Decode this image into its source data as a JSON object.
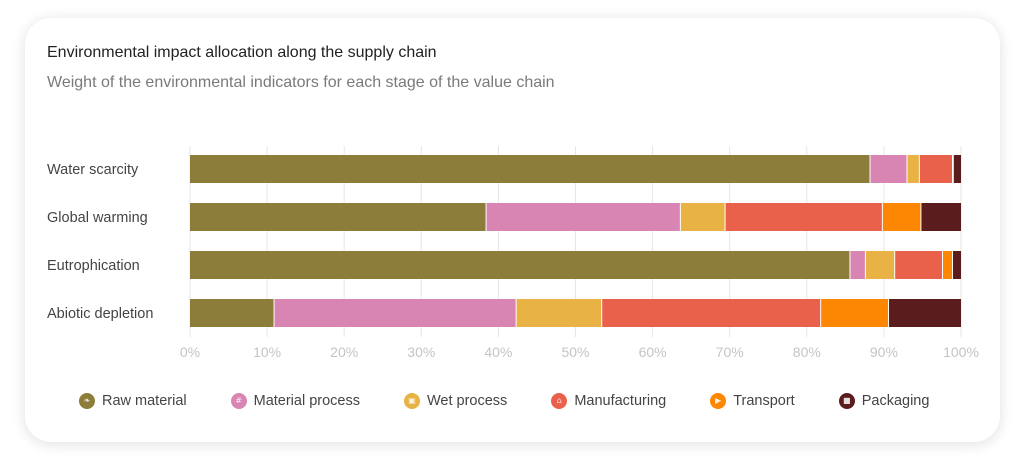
{
  "card": {
    "title": "Environmental impact allocation along the supply chain",
    "subtitle": "Weight of the environmental indicators for each stage of the value chain"
  },
  "chart_data": {
    "type": "bar",
    "orientation": "horizontal",
    "stacked": true,
    "title": "Environmental impact allocation along the supply chain",
    "subtitle": "Weight of the environmental indicators for each stage of the value chain",
    "categories": [
      "Water scarcity",
      "Global warming",
      "Eutrophication",
      "Abiotic depletion"
    ],
    "series": [
      {
        "name": "Raw material",
        "color": "#8c7d3a",
        "icon": "leaf-icon",
        "values": [
          88.2,
          38.4,
          85.6,
          10.9
        ]
      },
      {
        "name": "Material process",
        "color": "#d985b4",
        "icon": "grid-icon",
        "values": [
          4.8,
          25.2,
          2.0,
          31.4
        ]
      },
      {
        "name": "Wet process",
        "color": "#e8b244",
        "icon": "square-icon",
        "values": [
          1.6,
          5.8,
          3.8,
          11.1
        ]
      },
      {
        "name": "Manufacturing",
        "color": "#ea614b",
        "icon": "factory-icon",
        "values": [
          4.3,
          20.4,
          6.2,
          28.4
        ]
      },
      {
        "name": "Transport",
        "color": "#fd8702",
        "icon": "truck-icon",
        "values": [
          0.1,
          5.0,
          1.3,
          8.8
        ]
      },
      {
        "name": "Packaging",
        "color": "#5a1c1c",
        "icon": "box-icon",
        "values": [
          1.0,
          5.2,
          1.1,
          9.4
        ]
      }
    ],
    "xlim": [
      0,
      100
    ],
    "xticks": [
      "0%",
      "10%",
      "20%",
      "30%",
      "40%",
      "50%",
      "60%",
      "70%",
      "80%",
      "90%",
      "100%"
    ],
    "grid": true,
    "legend": "bottom"
  }
}
